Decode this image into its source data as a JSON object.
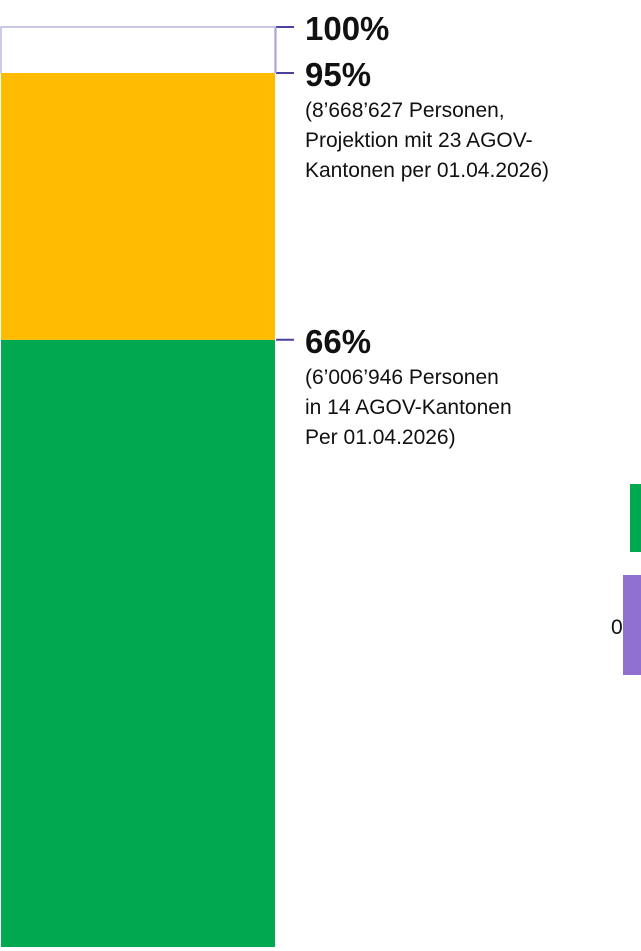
{
  "chart_data": {
    "type": "bar",
    "orientation": "vertical-stacked",
    "ylim": [
      0,
      100
    ],
    "unit": "%",
    "segments": [
      {
        "key": "aktuell",
        "from": 0,
        "to": 66,
        "color": "#00A94F"
      },
      {
        "key": "projektion",
        "from": 66,
        "to": 95,
        "color": "#FFBB00"
      },
      {
        "key": "rest",
        "from": 95,
        "to": 100,
        "color": "#FFFFFF"
      }
    ],
    "markers": [
      {
        "key": "m100",
        "value": 100,
        "label": "100%",
        "note": []
      },
      {
        "key": "m95",
        "value": 95,
        "label": "95%",
        "note": [
          "(8’668’627 Personen,",
          "Projektion mit 23 AGOV-",
          "Kantonen per 01.04.2026)"
        ]
      },
      {
        "key": "m66",
        "value": 66,
        "label": "66%",
        "note": [
          "(6’006’946 Personen",
          "in 14 AGOV-Kantonen",
          "Per 01.04.2026)"
        ]
      }
    ],
    "bar_outline_color": "#A9A6D6",
    "tick_color": "#4B3FA0",
    "partial_legend": [
      {
        "key": "legend-green",
        "color": "#00A94F",
        "text": ""
      },
      {
        "key": "legend-purple",
        "color": "#8F6FCF",
        "text": "0"
      }
    ]
  }
}
